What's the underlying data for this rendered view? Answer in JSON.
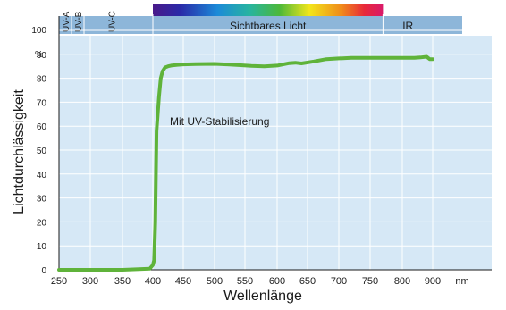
{
  "chart_data": {
    "type": "line",
    "xlabel": "Wellenlänge",
    "ylabel": "Lichtdurchlässigkeit",
    "x_unit": "nm",
    "y_unit": "%",
    "xlim": [
      250,
      900
    ],
    "ylim": [
      0,
      100
    ],
    "x_ticks": [
      250,
      300,
      350,
      400,
      450,
      500,
      550,
      600,
      650,
      700,
      750,
      800,
      900
    ],
    "y_ticks": [
      0,
      10,
      20,
      30,
      40,
      50,
      60,
      70,
      80,
      90,
      100
    ],
    "grid": true,
    "bands": [
      {
        "label": "UV-A",
        "from": 250,
        "to": 270
      },
      {
        "label": "UV-B",
        "from": 270,
        "to": 290
      },
      {
        "label": "UV-C",
        "from": 290,
        "to": 400
      },
      {
        "label": "Sichtbares Licht",
        "from": 400,
        "to": 770
      },
      {
        "label": "IR",
        "from": 770,
        "to": 900
      }
    ],
    "series": [
      {
        "name": "Mit UV-Stabilisierung",
        "color": "#5fb33a",
        "x": [
          250,
          300,
          350,
          395,
          400,
          402,
          404,
          406,
          410,
          413,
          416,
          420,
          425,
          430,
          440,
          450,
          470,
          500,
          520,
          540,
          560,
          580,
          600,
          620,
          630,
          640,
          660,
          680,
          700,
          720,
          750,
          780,
          800,
          820,
          840,
          860,
          880,
          890,
          900
        ],
        "y": [
          0,
          0,
          0,
          0.5,
          2,
          4,
          20,
          58,
          72,
          80,
          83,
          84.5,
          85,
          85.3,
          85.6,
          85.8,
          85.9,
          86,
          85.8,
          85.5,
          85.2,
          85.0,
          85.3,
          86.3,
          86.5,
          86.2,
          87,
          88,
          88.3,
          88.5,
          88.5,
          88.5,
          88.5,
          88.5,
          88.5,
          88.7,
          89,
          88,
          88
        ]
      }
    ]
  },
  "colors": {
    "plot_background": "#d6e8f6",
    "grid": "#ffffff",
    "band_header": "#8db6d9",
    "band_text": "#1a1a1a",
    "line": "#5fb33a"
  }
}
